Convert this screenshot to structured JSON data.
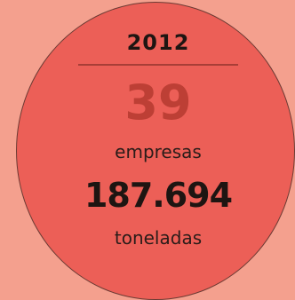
{
  "year": "2012",
  "companies": {
    "count": "39",
    "label": "empresas"
  },
  "tonnage": {
    "value": "187.694",
    "label": "toneladas"
  },
  "colors": {
    "background": "#f4a08e",
    "circle_fill": "#ec5f57",
    "highlight_number": "#bd3f35",
    "text_dark": "#1e1512"
  }
}
